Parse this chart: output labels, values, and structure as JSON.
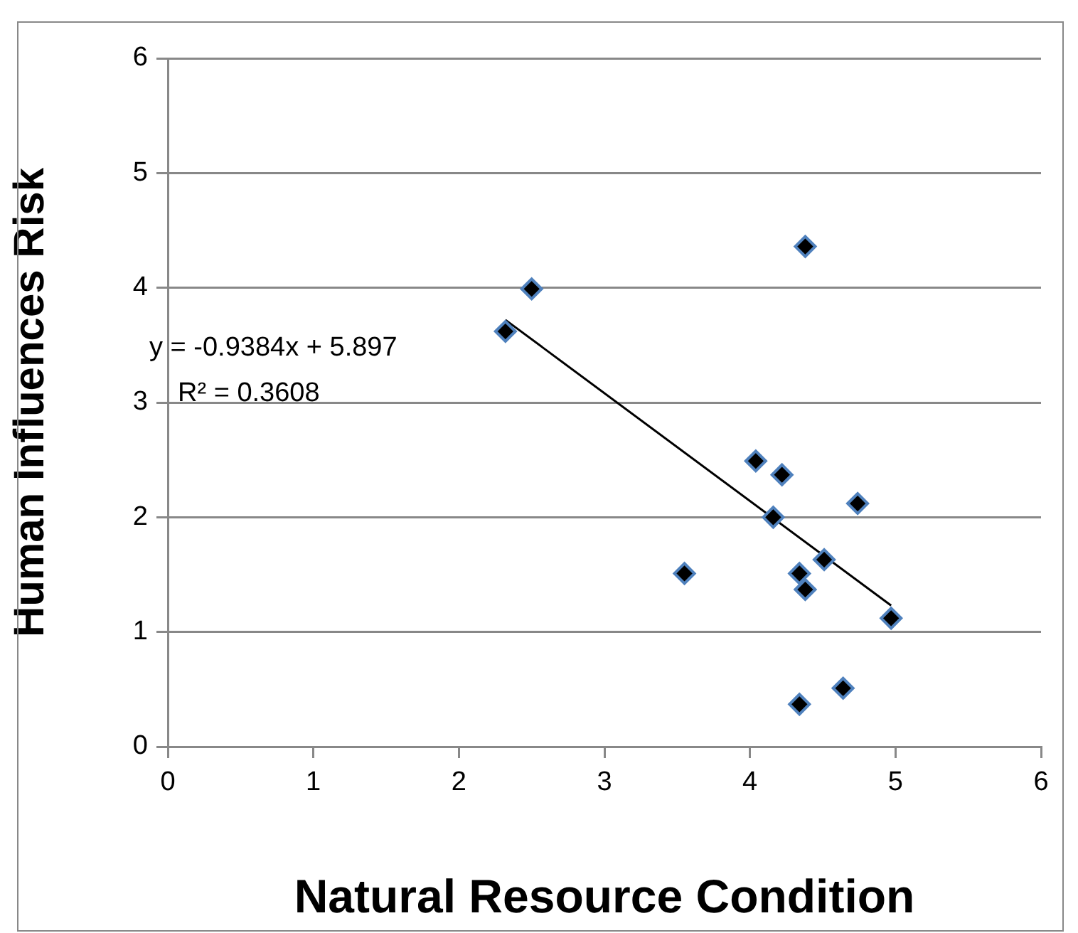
{
  "chart_data": {
    "type": "scatter",
    "xlabel": "Natural Resource Condition",
    "ylabel": "Human Influences Risk",
    "xlim": [
      0,
      6
    ],
    "xticks": [
      0,
      1,
      2,
      3,
      4,
      5,
      6
    ],
    "ylim": [
      0,
      6
    ],
    "yticks": [
      0,
      1,
      2,
      3,
      4,
      5,
      6
    ],
    "grid": "y",
    "legend": false,
    "marker": "diamond",
    "series": [
      {
        "color": "#000000",
        "x": [
          2.32,
          2.5,
          4.38,
          4.04,
          4.22,
          4.74,
          4.16,
          4.51,
          4.34,
          4.38,
          4.97,
          3.55,
          4.34,
          4.64
        ],
        "values": [
          3.62,
          3.99,
          4.36,
          2.49,
          2.37,
          2.12,
          2.0,
          1.63,
          1.51,
          1.37,
          1.12,
          1.51,
          0.37,
          0.51
        ]
      },
      {
        "type": "line",
        "marker": "none",
        "color": "#000000",
        "x": [
          2.32,
          4.97
        ],
        "values": [
          3.72,
          1.23
        ]
      }
    ],
    "annotations": [
      "y = -0.9384x + 5.897",
      "R² = 0.3608"
    ]
  }
}
